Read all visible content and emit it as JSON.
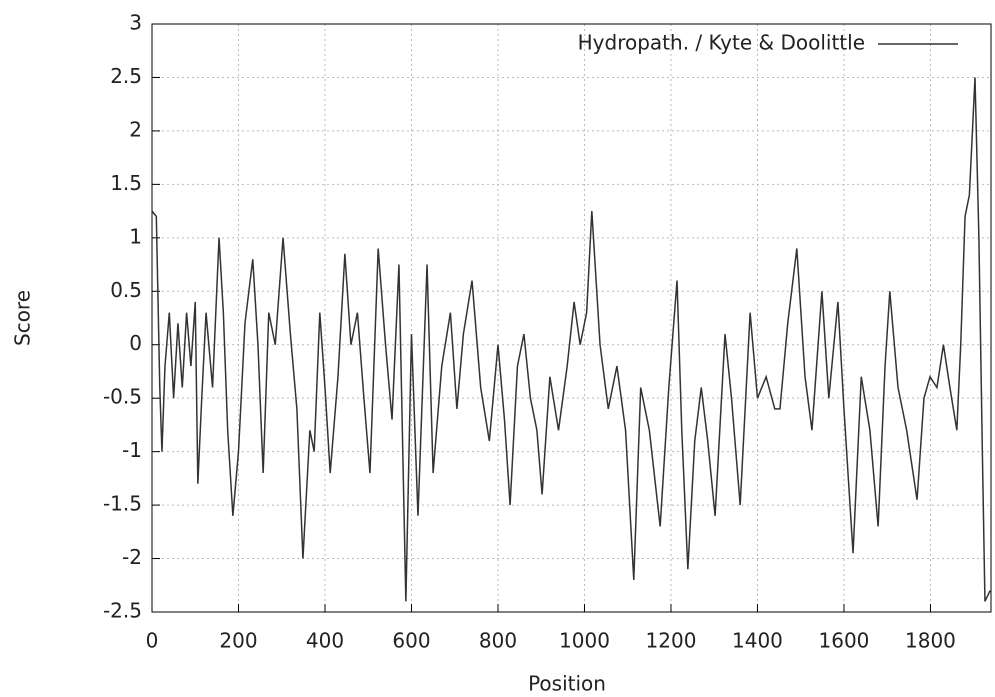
{
  "chart_data": {
    "type": "line",
    "xlabel": "Position",
    "ylabel": "Score",
    "series": [
      {
        "name": "Hydropath. / Kyte & Doolittle",
        "color": "#333333",
        "x": [
          0,
          10,
          18,
          23,
          30,
          40,
          50,
          60,
          70,
          80,
          90,
          100,
          106,
          115,
          125,
          140,
          155,
          165,
          175,
          187,
          200,
          215,
          233,
          245,
          257,
          270,
          285,
          303,
          320,
          335,
          349,
          365,
          375,
          388,
          400,
          412,
          430,
          446,
          460,
          475,
          490,
          504,
          523,
          540,
          555,
          571,
          587,
          600,
          615,
          636,
          650,
          670,
          690,
          705,
          720,
          740,
          760,
          780,
          800,
          815,
          828,
          845,
          860,
          875,
          890,
          902,
          920,
          940,
          960,
          976,
          990,
          1005,
          1017,
          1036,
          1055,
          1075,
          1095,
          1114,
          1130,
          1150,
          1175,
          1195,
          1214,
          1225,
          1239,
          1255,
          1270,
          1285,
          1302,
          1325,
          1340,
          1360,
          1383,
          1400,
          1420,
          1440,
          1452,
          1470,
          1491,
          1510,
          1526,
          1549,
          1565,
          1586,
          1600,
          1621,
          1640,
          1660,
          1679,
          1695,
          1706,
          1725,
          1745,
          1769,
          1785,
          1799,
          1815,
          1830,
          1845,
          1861,
          1870,
          1880,
          1890,
          1903,
          1912,
          1920,
          1926,
          1938
        ],
        "values": [
          1.25,
          1.2,
          -0.4,
          -1.0,
          -0.2,
          0.3,
          -0.5,
          0.2,
          -0.4,
          0.3,
          -0.2,
          0.4,
          -1.3,
          -0.5,
          0.3,
          -0.4,
          1.0,
          0.3,
          -0.8,
          -1.6,
          -1.0,
          0.2,
          0.8,
          0.0,
          -1.2,
          0.3,
          0.0,
          1.0,
          0.1,
          -0.6,
          -2.0,
          -0.8,
          -1.0,
          0.3,
          -0.4,
          -1.2,
          -0.3,
          0.85,
          0.0,
          0.3,
          -0.5,
          -1.2,
          0.9,
          0.0,
          -0.7,
          0.75,
          -2.4,
          0.1,
          -1.6,
          0.75,
          -1.2,
          -0.2,
          0.3,
          -0.6,
          0.1,
          0.6,
          -0.4,
          -0.9,
          0.0,
          -0.7,
          -1.5,
          -0.2,
          0.1,
          -0.5,
          -0.8,
          -1.4,
          -0.3,
          -0.8,
          -0.2,
          0.4,
          0.0,
          0.3,
          1.25,
          0.0,
          -0.6,
          -0.2,
          -0.8,
          -2.2,
          -0.4,
          -0.8,
          -1.7,
          -0.4,
          0.6,
          -0.8,
          -2.1,
          -0.9,
          -0.4,
          -0.9,
          -1.6,
          0.1,
          -0.5,
          -1.5,
          0.3,
          -0.5,
          -0.3,
          -0.6,
          -0.6,
          0.2,
          0.9,
          -0.3,
          -0.8,
          0.5,
          -0.5,
          0.4,
          -0.6,
          -1.95,
          -0.3,
          -0.8,
          -1.7,
          -0.2,
          0.5,
          -0.4,
          -0.8,
          -1.45,
          -0.5,
          -0.3,
          -0.4,
          0.0,
          -0.4,
          -0.8,
          0.0,
          1.2,
          1.4,
          2.5,
          1.0,
          -1.0,
          -2.4,
          -2.3
        ]
      }
    ],
    "xlim": [
      0,
      1940
    ],
    "xticks": [
      0,
      200,
      400,
      600,
      800,
      1000,
      1200,
      1400,
      1600,
      1800
    ],
    "ylim": [
      -2.5,
      3
    ],
    "yticks": [
      -2.5,
      -2,
      -1.5,
      -1,
      -0.5,
      0,
      0.5,
      1,
      1.5,
      2,
      2.5,
      3
    ],
    "grid": true,
    "legend": "top right"
  }
}
